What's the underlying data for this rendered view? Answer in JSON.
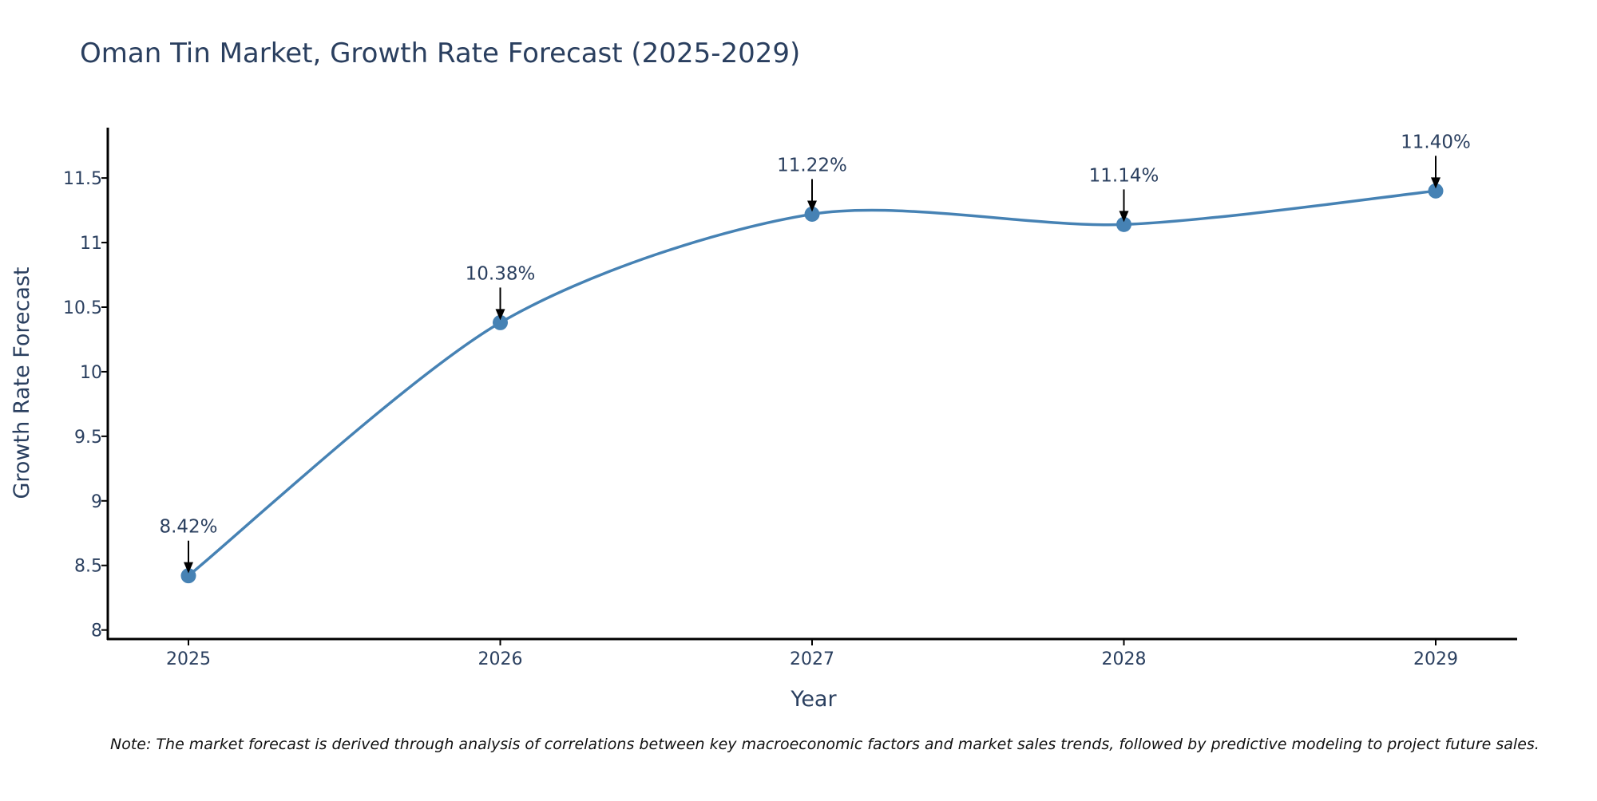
{
  "chart_data": {
    "type": "line",
    "title": "Oman Tin Market, Growth Rate Forecast (2025-2029)",
    "xlabel": "Year",
    "ylabel": "Growth Rate Forecast",
    "categories": [
      "2025",
      "2026",
      "2027",
      "2028",
      "2029"
    ],
    "series": [
      {
        "name": "Growth Rate Forecast",
        "values": [
          8.42,
          10.38,
          11.22,
          11.14,
          11.4
        ]
      }
    ],
    "data_labels": [
      "8.42%",
      "10.38%",
      "11.22%",
      "11.14%",
      "11.40%"
    ],
    "ylim": [
      7.93,
      11.89
    ],
    "yticks": [
      8,
      8.5,
      9,
      9.5,
      10,
      10.5,
      11,
      11.5
    ],
    "ytick_labels": [
      "8",
      "8.5",
      "9",
      "9.5",
      "10",
      "10.5",
      "11",
      "11.5"
    ],
    "grid": false,
    "line_shape": "spline",
    "line_color": "#4682b4",
    "marker_color": "#4682b4",
    "annotation_arrow_color": "#000000"
  },
  "note": "Note: The market forecast is derived through analysis of correlations between key macroeconomic factors and market sales trends, followed by predictive modeling to project future sales."
}
